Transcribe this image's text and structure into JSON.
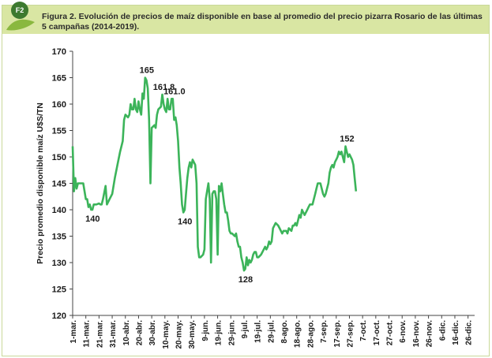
{
  "badge": "F2",
  "colors": {
    "line": "#3cb45a",
    "header_band": "#d9e6a3",
    "badge": "#3d7a2f",
    "leaf": "#8ab83f"
  },
  "chart_data": {
    "type": "line",
    "title": "Figura 2.  Evolución de precios de maíz disponible en base al promedio del precio pizarra Rosario de las últimas 5 campañas (2014-2019).",
    "ylabel": "Precio promedio disponible maíz U$S/TN",
    "xlabel": "",
    "ylim": [
      120,
      170
    ],
    "yticks": [
      120,
      125,
      130,
      135,
      140,
      145,
      150,
      155,
      160,
      165,
      170
    ],
    "grid": false,
    "legend": "none",
    "x_tick_labels": [
      "1-mar.",
      "11-mar.",
      "21-mar.",
      "31-mar.",
      "10-abr.",
      "20-abr.",
      "30-abr.",
      "10-may.",
      "20-may.",
      "30-may.",
      "9-jun.",
      "19-jun.",
      "29-jun.",
      "9-jul.",
      "19-jul.",
      "29-jul.",
      "8-ago.",
      "18-ago.",
      "28-ago.",
      "7-sep.",
      "17-sep.",
      "27-sep.",
      "7-oct.",
      "17-oct.",
      "27-oct.",
      "6-nov.",
      "16-nov.",
      "26-nov.",
      "6-dic.",
      "16-dic.",
      "26-dic."
    ],
    "points": [
      [
        "1-mar.",
        152
      ],
      [
        "2-mar.",
        143.5
      ],
      [
        "3-mar.",
        146
      ],
      [
        "4-mar.",
        144
      ],
      [
        "5-mar.",
        145
      ],
      [
        "7-mar.",
        145
      ],
      [
        "9-mar.",
        145
      ],
      [
        "11-mar.",
        142
      ],
      [
        "12-mar.",
        142
      ],
      [
        "13-mar.",
        140.5
      ],
      [
        "14-mar.",
        141
      ],
      [
        "15-mar.",
        140
      ],
      [
        "16-mar.",
        140
      ],
      [
        "17-mar.",
        141
      ],
      [
        "19-mar.",
        141
      ],
      [
        "21-mar.",
        141.2
      ],
      [
        "22-mar.",
        141
      ],
      [
        "23-mar.",
        141
      ],
      [
        "24-mar.",
        142
      ],
      [
        "26-mar.",
        144.5
      ],
      [
        "27-mar.",
        141
      ],
      [
        "29-mar.",
        142
      ],
      [
        "31-mar.",
        143
      ],
      [
        "2-abr.",
        146
      ],
      [
        "4-abr.",
        148.5
      ],
      [
        "6-abr.",
        151
      ],
      [
        "8-abr.",
        153
      ],
      [
        "9-abr.",
        157
      ],
      [
        "10-abr.",
        158
      ],
      [
        "12-abr.",
        157.5
      ],
      [
        "13-abr.",
        158
      ],
      [
        "14-abr.",
        160
      ],
      [
        "15-abr.",
        159
      ],
      [
        "16-abr.",
        159
      ],
      [
        "17-abr.",
        161
      ],
      [
        "18-abr.",
        159
      ],
      [
        "19-abr.",
        158.5
      ],
      [
        "20-abr.",
        160.5
      ],
      [
        "21-abr.",
        159
      ],
      [
        "22-abr.",
        158
      ],
      [
        "23-abr.",
        162
      ],
      [
        "24-abr.",
        161
      ],
      [
        "25-abr.",
        165
      ],
      [
        "26-abr.",
        164.5
      ],
      [
        "27-abr.",
        163
      ],
      [
        "28-abr.",
        157
      ],
      [
        "29-abr.",
        145
      ],
      [
        "30-abr.",
        155.5
      ],
      [
        "2-may.",
        156
      ],
      [
        "3-may.",
        155.5
      ],
      [
        "4-may.",
        158
      ],
      [
        "5-may.",
        159
      ],
      [
        "7-may.",
        159.5
      ],
      [
        "8-may.",
        161.8
      ],
      [
        "9-may.",
        160
      ],
      [
        "10-may.",
        159
      ],
      [
        "11-may.",
        158.5
      ],
      [
        "12-may.",
        161
      ],
      [
        "13-may.",
        159
      ],
      [
        "14-may.",
        159
      ],
      [
        "15-may.",
        161
      ],
      [
        "16-may.",
        161
      ],
      [
        "17-may.",
        157
      ],
      [
        "18-may.",
        157.5
      ],
      [
        "19-may.",
        156
      ],
      [
        "20-may.",
        153
      ],
      [
        "21-may.",
        148
      ],
      [
        "22-may.",
        145
      ],
      [
        "23-may.",
        141
      ],
      [
        "24-may.",
        139.5
      ],
      [
        "25-may.",
        140
      ],
      [
        "26-may.",
        143
      ],
      [
        "27-may.",
        146
      ],
      [
        "28-may.",
        148
      ],
      [
        "29-may.",
        149
      ],
      [
        "30-may.",
        148
      ],
      [
        "31-may.",
        149.5
      ],
      [
        "1-jun.",
        149
      ],
      [
        "2-jun.",
        148.5
      ],
      [
        "3-jun.",
        145
      ],
      [
        "4-jun.",
        133
      ],
      [
        "5-jun.",
        131
      ],
      [
        "6-jun.",
        131
      ],
      [
        "8-jun.",
        131.5
      ],
      [
        "9-jun.",
        132.5
      ],
      [
        "10-jun.",
        142
      ],
      [
        "11-jun.",
        143.5
      ],
      [
        "12-jun.",
        145
      ],
      [
        "13-jun.",
        142
      ],
      [
        "14-jun.",
        130
      ],
      [
        "15-jun.",
        143
      ],
      [
        "16-jun.",
        143.5
      ],
      [
        "17-jun.",
        143.5
      ],
      [
        "18-jun.",
        142
      ],
      [
        "19-jun.",
        131.5
      ],
      [
        "20-jun.",
        144.5
      ],
      [
        "21-jun.",
        143.5
      ],
      [
        "22-jun.",
        145
      ],
      [
        "23-jun.",
        143
      ],
      [
        "24-jun.",
        141
      ],
      [
        "25-jun.",
        139.5
      ],
      [
        "26-jun.",
        139.5
      ],
      [
        "27-jun.",
        138
      ],
      [
        "28-jun.",
        136
      ],
      [
        "29-jun.",
        135.5
      ],
      [
        "30-jun.",
        135.5
      ],
      [
        "2-jul.",
        135
      ],
      [
        "3-jul.",
        135.5
      ],
      [
        "4-jul.",
        134
      ],
      [
        "5-jul.",
        133
      ],
      [
        "6-jul.",
        133
      ],
      [
        "7-jul.",
        131
      ],
      [
        "8-jul.",
        130
      ],
      [
        "9-jul.",
        128.5
      ],
      [
        "10-jul.",
        128.8
      ],
      [
        "11-jul.",
        131
      ],
      [
        "12-jul.",
        129.5
      ],
      [
        "13-jul.",
        130.5
      ],
      [
        "14-jul.",
        130
      ],
      [
        "15-jul.",
        130.5
      ],
      [
        "16-jul.",
        131.5
      ],
      [
        "17-jul.",
        132
      ],
      [
        "18-jul.",
        132
      ],
      [
        "19-jul.",
        131
      ],
      [
        "20-jul.",
        131
      ],
      [
        "22-jul.",
        131.5
      ],
      [
        "24-jul.",
        132.5
      ],
      [
        "25-jul.",
        133
      ],
      [
        "26-jul.",
        132.5
      ],
      [
        "27-jul.",
        133
      ],
      [
        "28-jul.",
        134
      ],
      [
        "29-jul.",
        133.5
      ],
      [
        "30-jul.",
        134
      ],
      [
        "31-jul.",
        136.5
      ],
      [
        "2-ago.",
        137.5
      ],
      [
        "4-ago.",
        137
      ],
      [
        "5-ago.",
        136.5
      ],
      [
        "6-ago.",
        136
      ],
      [
        "7-ago.",
        135.5
      ],
      [
        "8-ago.",
        136
      ],
      [
        "10-ago.",
        136
      ],
      [
        "11-ago.",
        135.5
      ],
      [
        "12-ago.",
        136.5
      ],
      [
        "14-ago.",
        136
      ],
      [
        "15-ago.",
        137
      ],
      [
        "16-ago.",
        137
      ],
      [
        "17-ago.",
        137.5
      ],
      [
        "18-ago.",
        137
      ],
      [
        "19-ago.",
        138
      ],
      [
        "20-ago.",
        139
      ],
      [
        "21-ago.",
        138.5
      ],
      [
        "22-ago.",
        140
      ],
      [
        "23-ago.",
        139.5
      ],
      [
        "24-ago.",
        139
      ],
      [
        "26-ago.",
        140
      ],
      [
        "27-ago.",
        140.5
      ],
      [
        "28-ago.",
        141
      ],
      [
        "29-ago.",
        141
      ],
      [
        "30-ago.",
        141
      ],
      [
        "31-ago.",
        142
      ],
      [
        "1-sep.",
        143
      ],
      [
        "2-sep.",
        144
      ],
      [
        "3-sep.",
        145
      ],
      [
        "4-sep.",
        145
      ],
      [
        "5-sep.",
        145
      ],
      [
        "6-sep.",
        144
      ],
      [
        "7-sep.",
        143
      ],
      [
        "8-sep.",
        142.5
      ],
      [
        "9-sep.",
        143
      ],
      [
        "10-sep.",
        144
      ],
      [
        "11-sep.",
        145
      ],
      [
        "12-sep.",
        147
      ],
      [
        "13-sep.",
        148
      ],
      [
        "14-sep.",
        148.5
      ],
      [
        "15-sep.",
        148
      ],
      [
        "16-sep.",
        149
      ],
      [
        "17-sep.",
        149.5
      ],
      [
        "18-sep.",
        150
      ],
      [
        "19-sep.",
        151
      ],
      [
        "20-sep.",
        150.5
      ],
      [
        "21-sep.",
        151
      ],
      [
        "22-sep.",
        150
      ],
      [
        "23-sep.",
        149
      ],
      [
        "24-sep.",
        152
      ],
      [
        "25-sep.",
        151
      ],
      [
        "26-sep.",
        150
      ],
      [
        "27-sep.",
        150.5
      ],
      [
        "28-sep.",
        150
      ],
      [
        "29-sep.",
        149.5
      ],
      [
        "30-sep.",
        148.5
      ],
      [
        "1-oct.",
        146
      ],
      [
        "2-oct.",
        143.5
      ]
    ],
    "annotations": [
      {
        "label": "140",
        "x": "15-mar.",
        "y": 140
      },
      {
        "label": "165",
        "x": "25-abr.",
        "y": 165
      },
      {
        "label": "161.8",
        "x": "8-may.",
        "y": 161.8
      },
      {
        "label": "161.0",
        "x": "16-may.",
        "y": 161
      },
      {
        "label": "140",
        "x": "24-may.",
        "y": 139.5
      },
      {
        "label": "128",
        "x": "9-jul.",
        "y": 128.5
      },
      {
        "label": "152",
        "x": "24-sep.",
        "y": 152
      }
    ]
  }
}
